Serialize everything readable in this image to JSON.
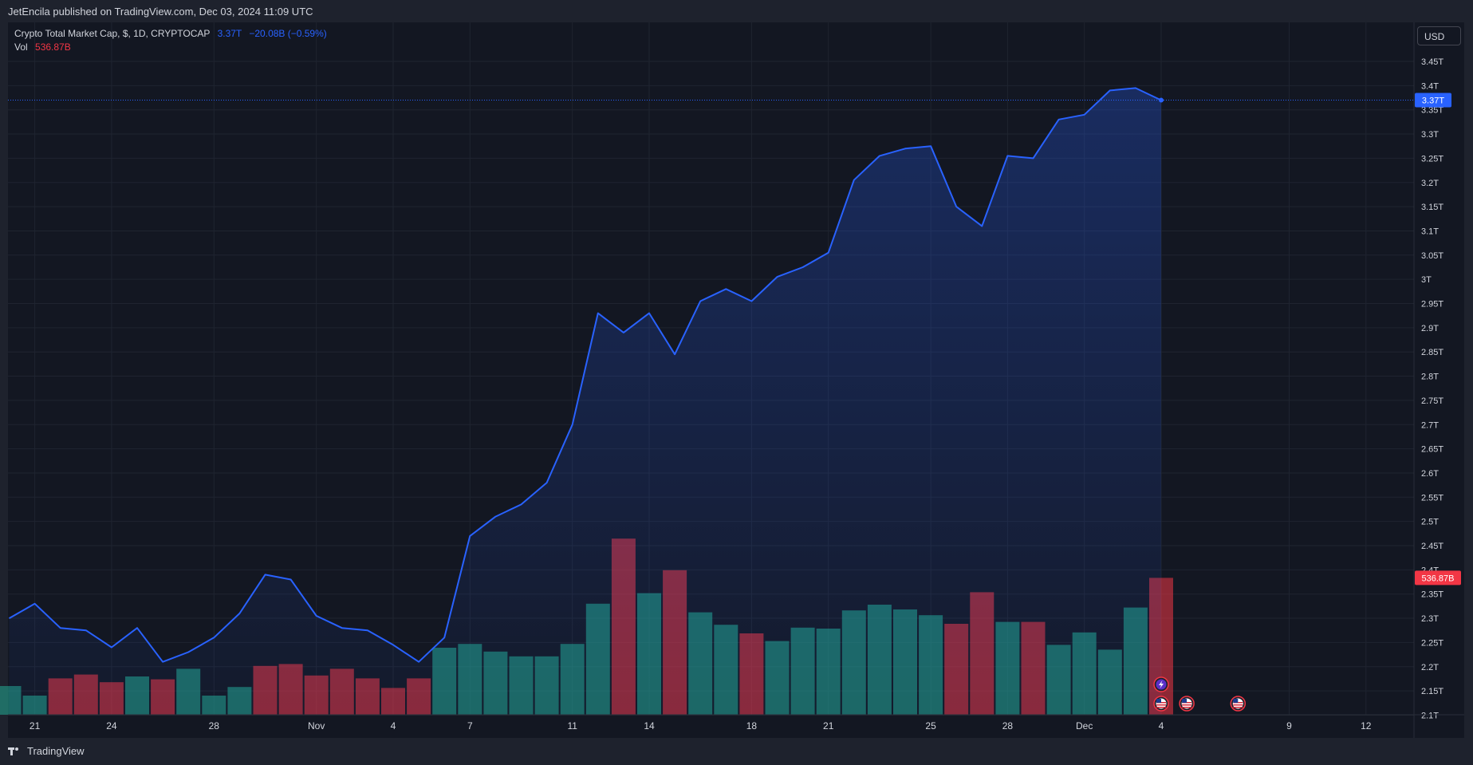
{
  "header": {
    "published": "JetEncila published on TradingView.com, Dec 03, 2024 11:09 UTC"
  },
  "legend": {
    "symbol": "Crypto Total Market Cap, $, 1D, CRYPTOCAP",
    "value": "3.37T",
    "change": "−20.08B (−0.59%)",
    "vol_label": "Vol",
    "vol_value": "536.87B"
  },
  "currency": "USD",
  "price_tag": "3.37T",
  "volume_tag": "536.87B",
  "footer": {
    "brand": "TradingView"
  },
  "colors": {
    "line": "#2962ff",
    "up": "#22ab94",
    "down": "#f23645",
    "bg": "#131722"
  },
  "chart_data": {
    "type": "line",
    "title": "",
    "ylabel": "",
    "ylim": [
      2.1,
      3.48
    ],
    "y_ticks": [
      "3.45T",
      "3.4T",
      "3.35T",
      "3.3T",
      "3.25T",
      "3.2T",
      "3.15T",
      "3.1T",
      "3.05T",
      "3T",
      "2.95T",
      "2.9T",
      "2.85T",
      "2.8T",
      "2.75T",
      "2.7T",
      "2.65T",
      "2.6T",
      "2.55T",
      "2.5T",
      "2.45T",
      "2.4T",
      "2.35T",
      "2.3T",
      "2.25T",
      "2.2T",
      "2.15T",
      "2.1T"
    ],
    "x_ticks": [
      {
        "label": "21",
        "index": 1
      },
      {
        "label": "24",
        "index": 4
      },
      {
        "label": "28",
        "index": 8
      },
      {
        "label": "Nov",
        "index": 12
      },
      {
        "label": "4",
        "index": 15
      },
      {
        "label": "7",
        "index": 18
      },
      {
        "label": "11",
        "index": 22
      },
      {
        "label": "14",
        "index": 25
      },
      {
        "label": "18",
        "index": 29
      },
      {
        "label": "21",
        "index": 32
      },
      {
        "label": "25",
        "index": 36
      },
      {
        "label": "28",
        "index": 39
      },
      {
        "label": "Dec",
        "index": 42
      },
      {
        "label": "4",
        "index": 45
      },
      {
        "label": "9",
        "index": 50
      },
      {
        "label": "12",
        "index": 53
      }
    ],
    "series": [
      {
        "type": "line",
        "values": [
          2.3,
          2.33,
          2.28,
          2.275,
          2.24,
          2.28,
          2.21,
          2.23,
          2.26,
          2.31,
          2.39,
          2.38,
          2.305,
          2.28,
          2.275,
          2.245,
          2.21,
          2.26,
          2.47,
          2.51,
          2.535,
          2.58,
          2.7,
          2.93,
          2.89,
          2.93,
          2.845,
          2.955,
          2.98,
          2.955,
          3.005,
          3.025,
          3.055,
          3.205,
          3.255,
          3.27,
          3.275,
          3.15,
          3.11,
          3.255,
          3.25,
          3.33,
          3.34,
          3.39,
          3.395,
          3.37
        ]
      },
      {
        "type": "volume",
        "values": [
          30,
          20,
          38,
          42,
          34,
          40,
          37,
          48,
          20,
          29,
          51,
          53,
          41,
          48,
          38,
          28,
          38,
          70,
          74,
          66,
          61,
          61,
          74,
          116,
          184,
          127,
          151,
          107,
          94,
          85,
          77,
          91,
          90,
          109,
          115,
          110,
          104,
          95,
          128,
          97,
          97,
          73,
          86,
          68,
          112,
          143
        ],
        "direction": [
          "up",
          "up",
          "down",
          "down",
          "down",
          "up",
          "down",
          "up",
          "up",
          "up",
          "down",
          "down",
          "down",
          "down",
          "down",
          "down",
          "down",
          "up",
          "up",
          "up",
          "up",
          "up",
          "up",
          "up",
          "down",
          "up",
          "down",
          "up",
          "up",
          "down",
          "up",
          "up",
          "up",
          "up",
          "up",
          "up",
          "up",
          "down",
          "down",
          "up",
          "down",
          "up",
          "up",
          "up",
          "up",
          "down"
        ]
      }
    ],
    "events": [
      {
        "index": 45,
        "icon": "lightning-icon"
      },
      {
        "index": 45,
        "icon": "us-flag-icon"
      },
      {
        "index": 46,
        "icon": "us-flag-icon"
      },
      {
        "index": 48,
        "icon": "us-flag-icon"
      }
    ],
    "grid": true
  }
}
